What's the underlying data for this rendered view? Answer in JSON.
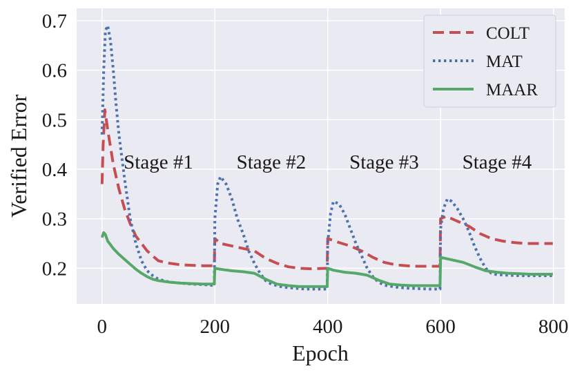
{
  "chart_data": {
    "type": "line",
    "title": "",
    "xlabel": "Epoch",
    "ylabel": "Verified Error",
    "xlim": [
      -45,
      820
    ],
    "ylim": [
      0.128,
      0.725
    ],
    "xticks": [
      0,
      200,
      400,
      600,
      800
    ],
    "yticks": [
      0.2,
      0.3,
      0.4,
      0.5,
      0.6,
      0.7
    ],
    "grid": true,
    "legend_position": "top-right",
    "stage_boundaries": [
      200,
      400,
      600
    ],
    "annotations": [
      {
        "text": "Stage #1",
        "x": 100,
        "y": 0.41
      },
      {
        "text": "Stage #2",
        "x": 300,
        "y": 0.41
      },
      {
        "text": "Stage #3",
        "x": 500,
        "y": 0.41
      },
      {
        "text": "Stage #4",
        "x": 700,
        "y": 0.41
      }
    ],
    "series": [
      {
        "name": "COLT",
        "color": "#c44e52",
        "style": "dashed",
        "points": [
          [
            0,
            0.37
          ],
          [
            2,
            0.45
          ],
          [
            5,
            0.52
          ],
          [
            10,
            0.48
          ],
          [
            20,
            0.41
          ],
          [
            30,
            0.36
          ],
          [
            40,
            0.32
          ],
          [
            50,
            0.29
          ],
          [
            60,
            0.265
          ],
          [
            70,
            0.25
          ],
          [
            80,
            0.235
          ],
          [
            90,
            0.225
          ],
          [
            100,
            0.215
          ],
          [
            120,
            0.21
          ],
          [
            140,
            0.207
          ],
          [
            160,
            0.206
          ],
          [
            180,
            0.205
          ],
          [
            199,
            0.205
          ],
          [
            200,
            0.26
          ],
          [
            210,
            0.25
          ],
          [
            230,
            0.245
          ],
          [
            250,
            0.24
          ],
          [
            270,
            0.235
          ],
          [
            290,
            0.22
          ],
          [
            310,
            0.21
          ],
          [
            330,
            0.203
          ],
          [
            350,
            0.2
          ],
          [
            370,
            0.199
          ],
          [
            399,
            0.2
          ],
          [
            400,
            0.26
          ],
          [
            420,
            0.252
          ],
          [
            440,
            0.245
          ],
          [
            460,
            0.235
          ],
          [
            480,
            0.222
          ],
          [
            500,
            0.212
          ],
          [
            520,
            0.207
          ],
          [
            540,
            0.205
          ],
          [
            560,
            0.204
          ],
          [
            580,
            0.204
          ],
          [
            599,
            0.204
          ],
          [
            600,
            0.3
          ],
          [
            610,
            0.305
          ],
          [
            630,
            0.295
          ],
          [
            650,
            0.285
          ],
          [
            670,
            0.27
          ],
          [
            690,
            0.26
          ],
          [
            710,
            0.255
          ],
          [
            730,
            0.252
          ],
          [
            750,
            0.25
          ],
          [
            770,
            0.25
          ],
          [
            799,
            0.25
          ]
        ]
      },
      {
        "name": "MAT",
        "color": "#4c72b0",
        "style": "dotted",
        "points": [
          [
            0,
            0.47
          ],
          [
            3,
            0.6
          ],
          [
            6,
            0.68
          ],
          [
            10,
            0.69
          ],
          [
            15,
            0.66
          ],
          [
            20,
            0.6
          ],
          [
            25,
            0.53
          ],
          [
            30,
            0.47
          ],
          [
            40,
            0.38
          ],
          [
            50,
            0.3
          ],
          [
            60,
            0.25
          ],
          [
            70,
            0.215
          ],
          [
            80,
            0.195
          ],
          [
            90,
            0.185
          ],
          [
            100,
            0.178
          ],
          [
            120,
            0.172
          ],
          [
            140,
            0.17
          ],
          [
            160,
            0.168
          ],
          [
            180,
            0.167
          ],
          [
            199,
            0.165
          ],
          [
            200,
            0.3
          ],
          [
            205,
            0.37
          ],
          [
            210,
            0.385
          ],
          [
            220,
            0.37
          ],
          [
            230,
            0.34
          ],
          [
            240,
            0.3
          ],
          [
            250,
            0.27
          ],
          [
            260,
            0.235
          ],
          [
            270,
            0.21
          ],
          [
            280,
            0.19
          ],
          [
            290,
            0.175
          ],
          [
            300,
            0.168
          ],
          [
            320,
            0.162
          ],
          [
            340,
            0.16
          ],
          [
            360,
            0.158
          ],
          [
            380,
            0.158
          ],
          [
            399,
            0.158
          ],
          [
            400,
            0.25
          ],
          [
            405,
            0.31
          ],
          [
            410,
            0.335
          ],
          [
            420,
            0.33
          ],
          [
            430,
            0.31
          ],
          [
            440,
            0.28
          ],
          [
            450,
            0.25
          ],
          [
            460,
            0.225
          ],
          [
            470,
            0.2
          ],
          [
            480,
            0.183
          ],
          [
            490,
            0.172
          ],
          [
            500,
            0.166
          ],
          [
            520,
            0.162
          ],
          [
            540,
            0.16
          ],
          [
            560,
            0.159
          ],
          [
            580,
            0.158
          ],
          [
            599,
            0.158
          ],
          [
            600,
            0.28
          ],
          [
            605,
            0.32
          ],
          [
            612,
            0.34
          ],
          [
            620,
            0.335
          ],
          [
            630,
            0.32
          ],
          [
            640,
            0.3
          ],
          [
            650,
            0.275
          ],
          [
            660,
            0.245
          ],
          [
            670,
            0.22
          ],
          [
            680,
            0.2
          ],
          [
            690,
            0.19
          ],
          [
            700,
            0.187
          ],
          [
            720,
            0.186
          ],
          [
            740,
            0.185
          ],
          [
            760,
            0.185
          ],
          [
            780,
            0.185
          ],
          [
            799,
            0.185
          ]
        ]
      },
      {
        "name": "MAAR",
        "color": "#55a868",
        "style": "solid",
        "points": [
          [
            0,
            0.262
          ],
          [
            3,
            0.272
          ],
          [
            6,
            0.268
          ],
          [
            10,
            0.255
          ],
          [
            20,
            0.24
          ],
          [
            30,
            0.228
          ],
          [
            40,
            0.218
          ],
          [
            50,
            0.208
          ],
          [
            60,
            0.198
          ],
          [
            70,
            0.19
          ],
          [
            80,
            0.183
          ],
          [
            90,
            0.178
          ],
          [
            100,
            0.175
          ],
          [
            120,
            0.172
          ],
          [
            140,
            0.17
          ],
          [
            160,
            0.169
          ],
          [
            180,
            0.168
          ],
          [
            199,
            0.168
          ],
          [
            200,
            0.2
          ],
          [
            210,
            0.198
          ],
          [
            230,
            0.195
          ],
          [
            250,
            0.193
          ],
          [
            270,
            0.19
          ],
          [
            290,
            0.178
          ],
          [
            310,
            0.168
          ],
          [
            330,
            0.165
          ],
          [
            350,
            0.163
          ],
          [
            370,
            0.163
          ],
          [
            399,
            0.163
          ],
          [
            400,
            0.2
          ],
          [
            410,
            0.196
          ],
          [
            430,
            0.192
          ],
          [
            450,
            0.19
          ],
          [
            470,
            0.186
          ],
          [
            490,
            0.176
          ],
          [
            510,
            0.168
          ],
          [
            530,
            0.166
          ],
          [
            550,
            0.165
          ],
          [
            570,
            0.165
          ],
          [
            599,
            0.165
          ],
          [
            600,
            0.222
          ],
          [
            620,
            0.217
          ],
          [
            640,
            0.212
          ],
          [
            660,
            0.203
          ],
          [
            680,
            0.195
          ],
          [
            700,
            0.192
          ],
          [
            720,
            0.19
          ],
          [
            740,
            0.189
          ],
          [
            760,
            0.188
          ],
          [
            780,
            0.188
          ],
          [
            799,
            0.188
          ]
        ]
      }
    ]
  }
}
